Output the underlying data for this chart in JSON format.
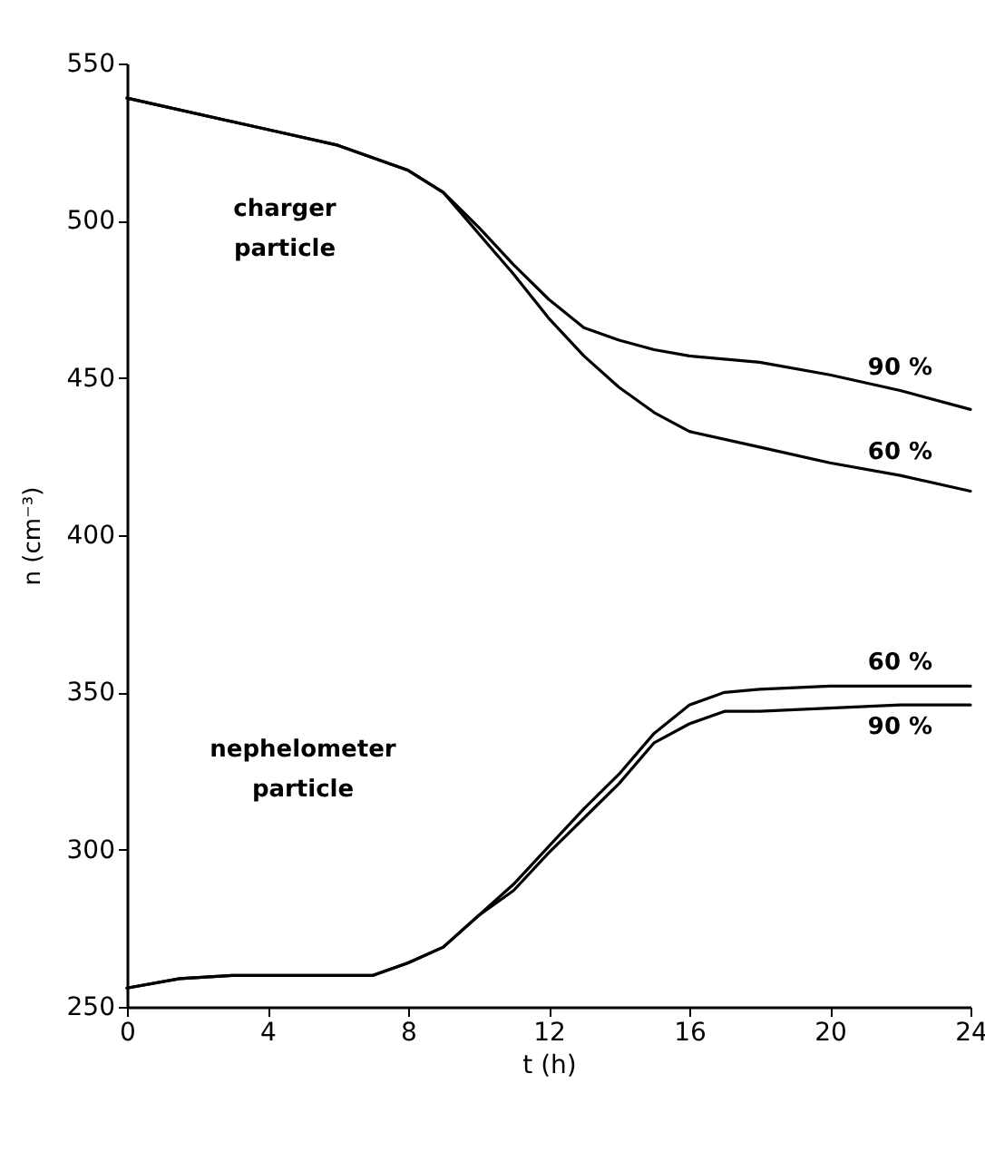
{
  "chart_data": {
    "type": "line",
    "xlabel": "t (h)",
    "ylabel": "n (cm⁻³)",
    "xlim": [
      0,
      24
    ],
    "xticks": [
      0,
      4,
      8,
      12,
      16,
      20,
      24
    ],
    "ylim": [
      250,
      550
    ],
    "yticks": [
      250,
      300,
      350,
      400,
      450,
      500,
      550
    ],
    "grid": false,
    "line_style": "solid",
    "marker": "none",
    "series": [
      {
        "name": "90 %",
        "color": "#000000",
        "x": [
          0,
          4,
          6,
          8,
          9,
          10,
          11,
          12,
          13,
          14,
          15,
          16,
          18,
          20,
          22,
          24
        ],
        "values": [
          539,
          529,
          524,
          516,
          509,
          498,
          486,
          475,
          466,
          462,
          459,
          457,
          455,
          451,
          446,
          440
        ]
      },
      {
        "name": "60 %",
        "color": "#000000",
        "x": [
          0,
          4,
          6,
          8,
          9,
          10,
          11,
          12,
          13,
          14,
          15,
          16,
          18,
          20,
          22,
          24
        ],
        "values": [
          539,
          529,
          524,
          516,
          509,
          496,
          483,
          469,
          457,
          447,
          439,
          433,
          428,
          423,
          419,
          414
        ]
      },
      {
        "name": "60 %",
        "color": "#000000",
        "x": [
          0,
          1.5,
          3,
          6,
          7,
          8,
          9,
          10,
          11,
          12,
          13,
          14,
          15,
          16,
          17,
          18,
          20,
          22,
          24
        ],
        "values": [
          256,
          259,
          260,
          260,
          260,
          264,
          269,
          279,
          289,
          301,
          313,
          324,
          337,
          346,
          350,
          351,
          352,
          352,
          352
        ]
      },
      {
        "name": "90 %",
        "color": "#000000",
        "x": [
          0,
          1.5,
          3,
          6,
          7,
          8,
          9,
          10,
          11,
          12,
          13,
          14,
          15,
          16,
          17,
          18,
          20,
          22,
          24
        ],
        "values": [
          256,
          259,
          260,
          260,
          260,
          264,
          269,
          279,
          287,
          299,
          310,
          321,
          334,
          340,
          344,
          344,
          345,
          346,
          346
        ]
      }
    ],
    "annotations": [
      "charger\nparticle",
      "nephelometer\nparticle"
    ]
  }
}
